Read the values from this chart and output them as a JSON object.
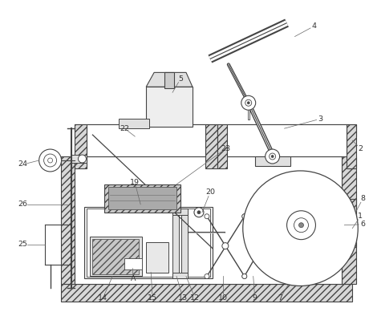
{
  "bg_color": "#ffffff",
  "line_color": "#444444",
  "fig_width": 4.65,
  "fig_height": 3.99,
  "hatch_lw": 0.5,
  "main_lw": 0.8
}
